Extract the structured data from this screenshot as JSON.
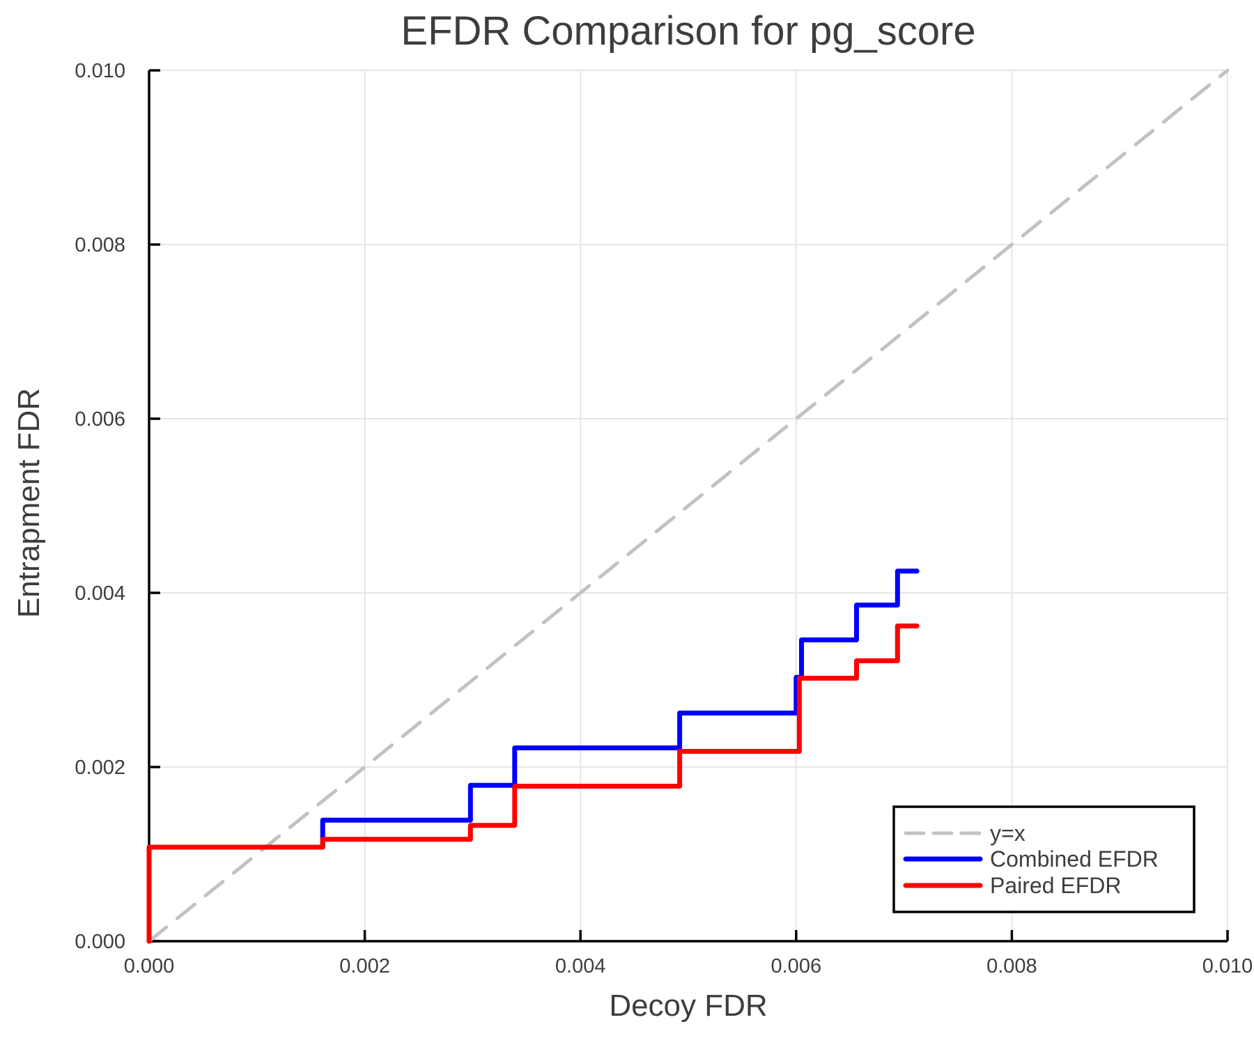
{
  "title": "EFDR Comparison for pg_score",
  "chart_data": {
    "type": "line",
    "title": "EFDR Comparison for pg_score",
    "xlabel": "Decoy FDR",
    "ylabel": "Entrapment FDR",
    "xlim": [
      0.0,
      0.01
    ],
    "ylim": [
      0.0,
      0.01
    ],
    "xticks": [
      0.0,
      0.002,
      0.004,
      0.006,
      0.008,
      0.01
    ],
    "yticks": [
      0.0,
      0.002,
      0.004,
      0.006,
      0.008,
      0.01
    ],
    "tick_decimals": 3,
    "grid": true,
    "legend_position": "bottom-right",
    "colors": {
      "identity_line": "#c2c2c2",
      "combined": "#0000ff",
      "paired": "#ff0000",
      "gridline": "#e5e5e5",
      "spine": "#000000",
      "text": "#3d3d3d"
    },
    "series": [
      {
        "name": "y=x",
        "color": "#c2c2c2",
        "style": "dashed",
        "width": 5,
        "points": [
          [
            0.0,
            0.0
          ],
          [
            0.01,
            0.01
          ]
        ]
      },
      {
        "name": "Combined EFDR",
        "color": "#0000ff",
        "style": "solid",
        "width": 7,
        "points": [
          [
            0.0,
            0.0
          ],
          [
            0.0,
            0.00108
          ],
          [
            0.00161,
            0.00108
          ],
          [
            0.00161,
            0.00139
          ],
          [
            0.00298,
            0.00139
          ],
          [
            0.00298,
            0.00179
          ],
          [
            0.00339,
            0.00179
          ],
          [
            0.00339,
            0.00222
          ],
          [
            0.00492,
            0.00222
          ],
          [
            0.00492,
            0.00262
          ],
          [
            0.006,
            0.00262
          ],
          [
            0.006,
            0.00303
          ],
          [
            0.00605,
            0.00303
          ],
          [
            0.00605,
            0.00346
          ],
          [
            0.00656,
            0.00346
          ],
          [
            0.00656,
            0.00386
          ],
          [
            0.00694,
            0.00386
          ],
          [
            0.00694,
            0.00425
          ],
          [
            0.00712,
            0.00425
          ]
        ]
      },
      {
        "name": "Paired EFDR",
        "color": "#ff0000",
        "style": "solid",
        "width": 7,
        "points": [
          [
            0.0,
            0.0
          ],
          [
            0.0,
            0.00108
          ],
          [
            0.00161,
            0.00108
          ],
          [
            0.00161,
            0.00117
          ],
          [
            0.00298,
            0.00117
          ],
          [
            0.00298,
            0.00133
          ],
          [
            0.00339,
            0.00133
          ],
          [
            0.00339,
            0.00178
          ],
          [
            0.00492,
            0.00178
          ],
          [
            0.00492,
            0.00218
          ],
          [
            0.00603,
            0.00218
          ],
          [
            0.00603,
            0.00302
          ],
          [
            0.00656,
            0.00302
          ],
          [
            0.00656,
            0.00322
          ],
          [
            0.00694,
            0.00322
          ],
          [
            0.00694,
            0.00362
          ],
          [
            0.00712,
            0.00362
          ]
        ]
      }
    ]
  }
}
